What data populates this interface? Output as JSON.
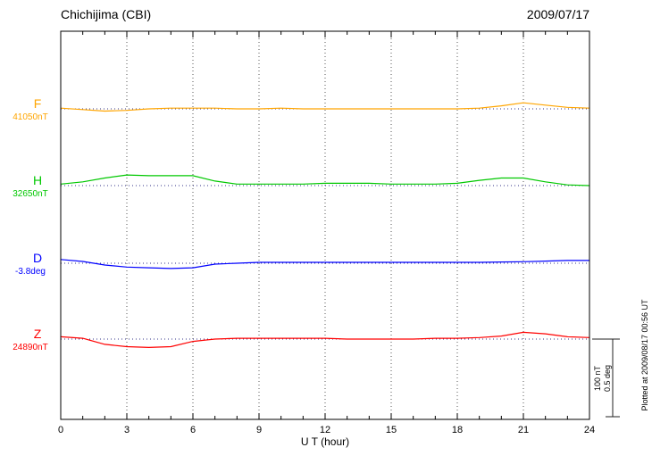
{
  "header": {
    "title": "Chichijima (CBI)",
    "date": "2009/07/17"
  },
  "axes": {
    "xlabel": "U T (hour)",
    "xticks": [
      0,
      3,
      6,
      9,
      12,
      15,
      18,
      21,
      24
    ],
    "grid_hours": [
      3,
      6,
      9,
      12,
      15,
      18,
      21
    ],
    "xmin": 0,
    "xmax": 24
  },
  "scalebar": {
    "nt_label": "100 nT",
    "deg_label": "0.5 deg"
  },
  "footer": {
    "plotted_at": "Plotted at 2009/08/17 00:56 UT"
  },
  "chart_data": {
    "type": "line",
    "title": "Chichijima (CBI) magnetogram",
    "date": "2009/07/17",
    "x_unit": "UT hour",
    "x_hours": [
      0,
      1,
      2,
      3,
      4,
      5,
      6,
      7,
      8,
      9,
      10,
      11,
      12,
      13,
      14,
      15,
      16,
      17,
      18,
      19,
      20,
      21,
      22,
      23,
      24
    ],
    "scale": {
      "nT_per_bar": 100,
      "deg_per_bar": 0.5
    },
    "series": [
      {
        "name": "F",
        "baseline_label": "41050nT",
        "baseline_value": 41050,
        "unit": "nT",
        "color": "#ffa500",
        "offsets": [
          1,
          -1,
          -3,
          -2,
          0,
          1,
          1,
          1,
          0,
          0,
          1,
          0,
          0,
          0,
          0,
          0,
          0,
          0,
          0,
          1,
          4,
          8,
          5,
          2,
          1
        ]
      },
      {
        "name": "H",
        "baseline_label": "32650nT",
        "baseline_value": 32650,
        "unit": "nT",
        "color": "#00c800",
        "offsets": [
          2,
          5,
          10,
          14,
          13,
          13,
          13,
          6,
          2,
          2,
          2,
          2,
          3,
          3,
          3,
          2,
          2,
          2,
          3,
          7,
          10,
          10,
          5,
          1,
          0
        ]
      },
      {
        "name": "D",
        "baseline_label": "-3.8deg",
        "baseline_value": -3.8,
        "unit": "deg",
        "color": "#0000ff",
        "offsets": [
          0.025,
          0.012,
          -0.012,
          -0.025,
          -0.03,
          -0.035,
          -0.03,
          -0.006,
          0.0,
          0.006,
          0.006,
          0.006,
          0.006,
          0.006,
          0.006,
          0.006,
          0.006,
          0.006,
          0.006,
          0.006,
          0.008,
          0.01,
          0.014,
          0.018,
          0.018
        ]
      },
      {
        "name": "Z",
        "baseline_label": "24890nT",
        "baseline_value": 24890,
        "unit": "nT",
        "color": "#ff0000",
        "offsets": [
          3,
          1,
          -7,
          -10,
          -11,
          -10,
          -3,
          0,
          1,
          1,
          1,
          1,
          1,
          0,
          0,
          0,
          0,
          1,
          1,
          2,
          4,
          9,
          7,
          3,
          2
        ]
      }
    ]
  }
}
